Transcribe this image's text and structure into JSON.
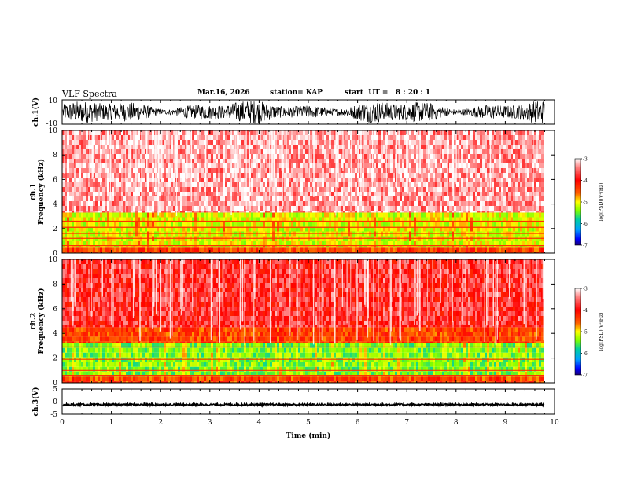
{
  "header": {
    "title": "VLF Spectra",
    "date": "Mar.16, 2026",
    "station": "station= KAP",
    "start_ut": "start  UT =   8 : 20 : 1"
  },
  "chart_data": [
    {
      "type": "line",
      "panel": "ch1-waveform",
      "ylabel": "ch.1(V)",
      "ylim": [
        -10,
        10
      ],
      "yticks": [
        "10",
        "-10"
      ],
      "xlim": [
        0,
        10
      ],
      "series": [
        {
          "name": "ch.1",
          "description_range": [
            -9,
            9
          ]
        }
      ]
    },
    {
      "type": "heatmap",
      "panel": "ch1-spectrogram",
      "ylabel": "ch.1\nFrequency (kHz)",
      "ylim": [
        0,
        10
      ],
      "yticks": [
        "0",
        "2",
        "4",
        "6",
        "8",
        "10"
      ],
      "xlim": [
        0,
        10
      ],
      "bands": [
        {
          "from_khz": 0,
          "to_khz": 0.5,
          "level": -4.2
        },
        {
          "from_khz": 0.5,
          "to_khz": 3.3,
          "level": -4.9
        },
        {
          "from_khz": 3.3,
          "to_khz": 10,
          "level": -3.3
        }
      ],
      "colorbar": {
        "label": "log(PSD)(V²/Hz)",
        "ticks": [
          "-3",
          "-4",
          "-5",
          "-6",
          "-7"
        ],
        "range": [
          -7,
          -3
        ]
      }
    },
    {
      "type": "heatmap",
      "panel": "ch2-spectrogram",
      "ylabel": "ch.2\nFrequency (kHz)",
      "ylim": [
        0,
        10
      ],
      "yticks": [
        "0",
        "2",
        "4",
        "6",
        "8",
        "10"
      ],
      "xlim": [
        0,
        10
      ],
      "bands": [
        {
          "from_khz": 0,
          "to_khz": 0.5,
          "level": -4.2
        },
        {
          "from_khz": 0.5,
          "to_khz": 3.2,
          "level": -5.2
        },
        {
          "from_khz": 3.2,
          "to_khz": 4.5,
          "level": -4.2
        },
        {
          "from_khz": 4.5,
          "to_khz": 10,
          "level": -3.7
        }
      ],
      "colorbar": {
        "label": "log(PSD)(V²/Hz)",
        "ticks": [
          "-3",
          "-4",
          "-5",
          "-6",
          "-7"
        ],
        "range": [
          -7,
          -3
        ]
      }
    },
    {
      "type": "line",
      "panel": "ch3-waveform",
      "ylabel": "ch.3(V)",
      "ylim": [
        -5,
        5
      ],
      "yticks": [
        "5",
        "0",
        "-5"
      ],
      "xlim": [
        0,
        10
      ],
      "xlabel": "Time (min)",
      "xticks": [
        "0",
        "1",
        "2",
        "3",
        "4",
        "5",
        "6",
        "7",
        "8",
        "9",
        "10"
      ],
      "series": [
        {
          "name": "ch.3",
          "description_range": [
            -1.6,
            -0.8
          ]
        }
      ]
    }
  ],
  "colors": {
    "colormap": [
      "#2a0080",
      "#0000ff",
      "#00a0ff",
      "#00ff60",
      "#c8ff00",
      "#ffff00",
      "#ff6000",
      "#ff0000",
      "#ffffff"
    ]
  }
}
